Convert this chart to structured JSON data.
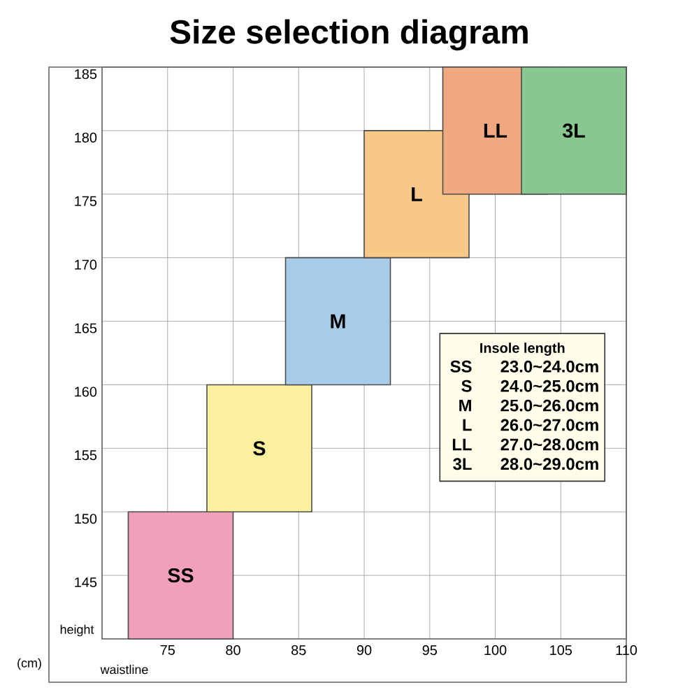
{
  "chart_data": {
    "type": "bar",
    "title": "Size selection diagram",
    "xlabel": "waistline",
    "ylabel": "height",
    "xlim": [
      70,
      110
    ],
    "ylim": [
      140,
      185
    ],
    "xticks": [
      {
        "value": 70,
        "label": null
      },
      75,
      80,
      85,
      90,
      95,
      100,
      105,
      110
    ],
    "yticks": [
      {
        "value": 140,
        "label": null
      },
      145,
      150,
      155,
      160,
      165,
      170,
      175,
      180,
      185
    ],
    "grid": true,
    "series": [
      {
        "name": "SS",
        "color": "#f0a0b8",
        "x": [
          76
        ],
        "base": [
          140
        ],
        "values": [
          10
        ]
      },
      {
        "name": "S",
        "color": "#faf0a0",
        "x": [
          82
        ],
        "base": [
          150
        ],
        "values": [
          10
        ]
      },
      {
        "name": "M",
        "color": "#a8cce8",
        "x": [
          88
        ],
        "base": [
          160
        ],
        "values": [
          10
        ]
      },
      {
        "name": "L",
        "color": "#f8c888",
        "x": [
          94
        ],
        "base": [
          170
        ],
        "values": [
          10
        ]
      },
      {
        "name": "LL",
        "color": "#f0a880",
        "x": [
          100
        ],
        "base": [
          175
        ],
        "values": [
          10
        ]
      },
      {
        "name": "3L",
        "color": "#88c890",
        "x": [
          106
        ],
        "base": [
          175
        ],
        "values": [
          10
        ]
      }
    ],
    "annotations": [
      "(cm)",
      "Insole length",
      "SS",
      "23.0~24.0cm",
      "S",
      "24.0~25.0cm",
      "M",
      "25.0~26.0cm",
      "L",
      "26.0~27.0cm",
      "LL",
      "27.0~28.0cm",
      "3L",
      "28.0~29.0cm"
    ]
  }
}
